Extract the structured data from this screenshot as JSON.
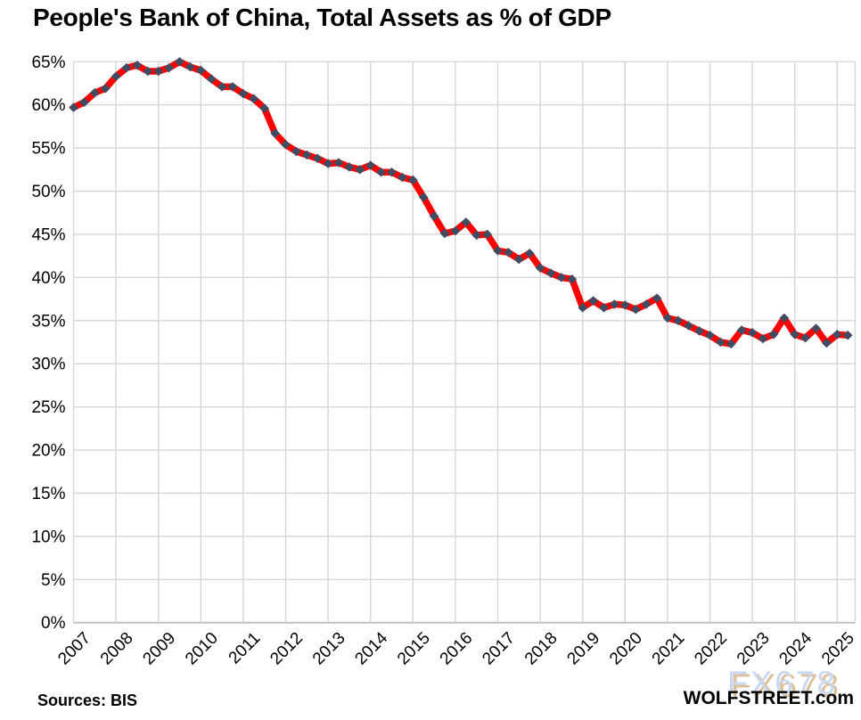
{
  "title": "People's Bank of China, Total Assets as % of GDP",
  "footer": {
    "sources": "Sources: BIS",
    "brand": "WOLFSTREET.com"
  },
  "watermark": {
    "text": "FX678",
    "blue": "#c8d9f1",
    "tan": "#dcc09c"
  },
  "colors": {
    "line": "#ff0000",
    "marker": "#3e4d63",
    "gridline": "#d6d6d6",
    "axis_line": "#c0c0c0",
    "text": "#000000",
    "background": "#ffffff"
  },
  "chart_data": {
    "type": "line",
    "title": "People's Bank of China, Total Assets as % of GDP",
    "xlabel": "",
    "ylabel": "",
    "grid": true,
    "legend": "none",
    "ylim": [
      0,
      65
    ],
    "y_tick_step": 5,
    "y_tick_labels": [
      "0%",
      "5%",
      "10%",
      "15%",
      "20%",
      "25%",
      "30%",
      "35%",
      "40%",
      "45%",
      "50%",
      "55%",
      "60%",
      "65%"
    ],
    "x_tick_labels": [
      "2007",
      "2008",
      "2009",
      "2010",
      "2011",
      "2012",
      "2013",
      "2014",
      "2015",
      "2016",
      "2017",
      "2018",
      "2019",
      "2020",
      "2021",
      "2022",
      "2023",
      "2024",
      "2025"
    ],
    "frequency": "quarterly",
    "x_start": 2007.0,
    "x_step": 0.25,
    "series": [
      {
        "name": "PBOC total assets as % of GDP",
        "values": [
          59.7,
          60.3,
          61.4,
          61.9,
          63.3,
          64.3,
          64.6,
          63.9,
          63.9,
          64.3,
          65.0,
          64.4,
          64.0,
          63.0,
          62.1,
          62.1,
          61.3,
          60.7,
          59.6,
          56.7,
          55.4,
          54.6,
          54.2,
          53.8,
          53.2,
          53.3,
          52.8,
          52.5,
          53.0,
          52.2,
          52.2,
          51.6,
          51.3,
          49.3,
          47.1,
          45.1,
          45.4,
          46.4,
          44.9,
          45.0,
          43.1,
          42.9,
          42.1,
          42.8,
          41.1,
          40.5,
          40.0,
          39.8,
          36.5,
          37.3,
          36.5,
          36.9,
          36.8,
          36.3,
          36.9,
          37.6,
          35.3,
          35.0,
          34.4,
          33.8,
          33.3,
          32.5,
          32.3,
          33.9,
          33.6,
          32.9,
          33.4,
          35.3,
          33.4,
          33.0,
          34.1,
          32.4,
          33.4,
          33.3
        ]
      }
    ]
  }
}
